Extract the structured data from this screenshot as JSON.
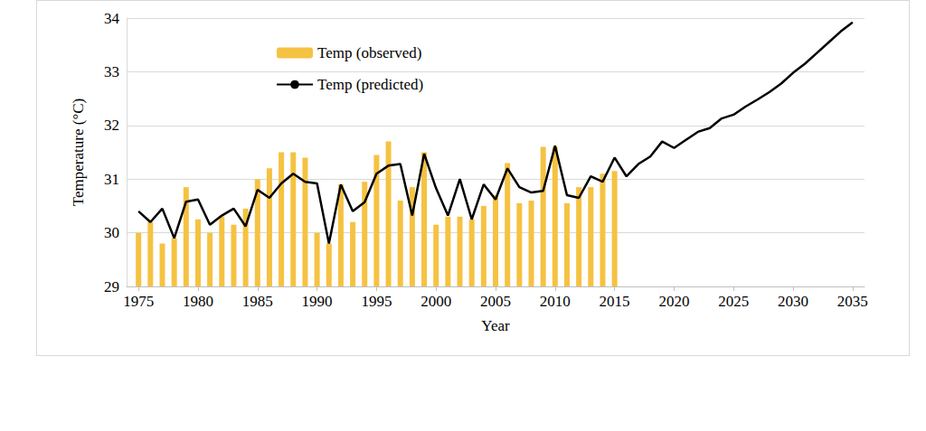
{
  "chart_data": {
    "type": "bar",
    "x_label": "Year",
    "y_label": "Temperature (°C)",
    "x": [
      1975,
      1976,
      1977,
      1978,
      1979,
      1980,
      1981,
      1982,
      1983,
      1984,
      1985,
      1986,
      1987,
      1988,
      1989,
      1990,
      1991,
      1992,
      1993,
      1994,
      1995,
      1996,
      1997,
      1998,
      1999,
      2000,
      2001,
      2002,
      2003,
      2004,
      2005,
      2006,
      2007,
      2008,
      2009,
      2010,
      2011,
      2012,
      2013,
      2014,
      2015,
      2016,
      2017,
      2018,
      2019,
      2020,
      2021,
      2022,
      2023,
      2024,
      2025,
      2026,
      2027,
      2028,
      2029,
      2030,
      2031,
      2032,
      2033,
      2034,
      2035
    ],
    "series": [
      {
        "name": "Temp (observed)",
        "type": "bar",
        "color": "#f5c242",
        "values": [
          30.0,
          30.2,
          29.8,
          29.9,
          30.85,
          30.25,
          30.0,
          30.3,
          30.15,
          30.45,
          31.0,
          31.2,
          31.5,
          31.5,
          31.4,
          30.0,
          29.8,
          30.9,
          30.2,
          30.95,
          31.45,
          31.7,
          30.6,
          30.85,
          31.5,
          30.15,
          30.3,
          30.3,
          30.25,
          30.5,
          30.7,
          31.3,
          30.55,
          30.6,
          31.6,
          31.6,
          30.55,
          30.85,
          30.85,
          31.1,
          31.15,
          null,
          null,
          null,
          null,
          null,
          null,
          null,
          null,
          null,
          null,
          null,
          null,
          null,
          null,
          null,
          null,
          null,
          null,
          null,
          null
        ]
      },
      {
        "name": "Temp (predicted)",
        "type": "line",
        "color": "#000000",
        "line_style": "solid",
        "marker": "none",
        "values": [
          30.4,
          30.2,
          30.45,
          29.9,
          30.58,
          30.62,
          30.15,
          30.32,
          30.45,
          30.12,
          30.8,
          30.65,
          30.92,
          31.1,
          30.95,
          30.92,
          29.8,
          30.9,
          30.4,
          30.57,
          31.1,
          31.25,
          31.28,
          30.32,
          31.47,
          30.83,
          30.32,
          31.0,
          30.25,
          30.9,
          30.62,
          31.2,
          30.85,
          30.75,
          30.78,
          31.62,
          30.7,
          30.65,
          31.05,
          30.95,
          31.4,
          31.05,
          31.28,
          31.42,
          31.7,
          31.58,
          31.73,
          31.88,
          31.95,
          32.13,
          32.2,
          32.35,
          32.48,
          32.62,
          32.78,
          32.98,
          33.15,
          33.35,
          33.55,
          33.75,
          33.92
        ]
      }
    ],
    "xlim": [
      1974,
      2036
    ],
    "xticks": [
      1975,
      1980,
      1985,
      1990,
      1995,
      2000,
      2005,
      2010,
      2015,
      2020,
      2025,
      2030,
      2035
    ],
    "ylim": [
      29,
      34
    ],
    "yticks": [
      29,
      30,
      31,
      32,
      33,
      34
    ],
    "grid": true,
    "legend": "upper left"
  }
}
